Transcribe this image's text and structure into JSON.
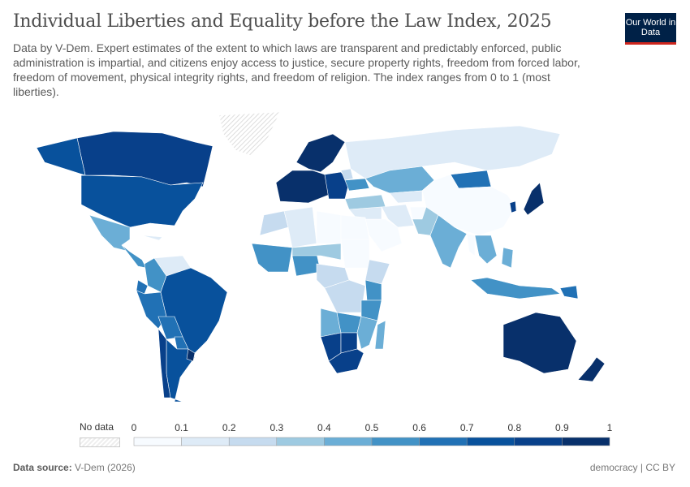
{
  "header": {
    "title": "Individual Liberties and Equality before the Law Index, 2025",
    "subtitle": "Data by V-Dem. Expert estimates of the extent to which laws are transparent and predictably enforced, public administration is impartial, and citizens enjoy access to justice, secure property rights, freedom from forced labor, freedom of movement, physical integrity rights, and freedom of religion. The index ranges from 0 to 1 (most liberties).",
    "logo": "Our World in Data"
  },
  "footer": {
    "source_label": "Data source:",
    "source": "V-Dem (2026)",
    "right": "democracy | CC BY"
  },
  "legend": {
    "no_data": "No data",
    "ticks": [
      "0",
      "0.1",
      "0.2",
      "0.3",
      "0.4",
      "0.5",
      "0.6",
      "0.7",
      "0.8",
      "0.9",
      "1"
    ],
    "colors": [
      "#f7fbff",
      "#deebf7",
      "#c6dbef",
      "#9ecae1",
      "#6baed6",
      "#4292c6",
      "#2171b5",
      "#08519c",
      "#08408a",
      "#08306b"
    ],
    "no_data_color": "#eeeeee"
  },
  "chart_data": {
    "type": "choropleth",
    "year": 2025,
    "range": [
      0,
      1
    ],
    "values": {
      "Canada": 0.88,
      "Alaska (United States)": 0.72,
      "United States": 0.72,
      "Greenland": null,
      "Mexico": 0.45,
      "Central America": 0.5,
      "Cuba": 0.15,
      "Venezuela": 0.15,
      "Colombia": 0.55,
      "Ecuador": 0.6,
      "Peru": 0.6,
      "Brazil": 0.75,
      "Bolivia": 0.6,
      "Paraguay": 0.6,
      "Argentina": 0.75,
      "Chile": 0.88,
      "Uruguay": 0.9,
      "Western Europe": 0.92,
      "Scandinavia": 0.92,
      "Eastern Europe": 0.8,
      "Belarus": 0.2,
      "Ukraine": 0.55,
      "Turkey": 0.35,
      "Russia": 0.15,
      "Kazakhstan": 0.4,
      "Central Asia": 0.1,
      "Mongolia": 0.65,
      "China": 0.08,
      "Japan": 0.9,
      "South Korea": 0.85,
      "Iran": 0.12,
      "Saudi Arabia": 0.08,
      "Middle East": 0.15,
      "Afghanistan": 0.05,
      "Pakistan": 0.35,
      "India": 0.45,
      "Myanmar": 0.08,
      "Southeast Asia": 0.4,
      "Indonesia": 0.55,
      "Philippines": 0.45,
      "Papua New Guinea": 0.6,
      "Morocco": 0.25,
      "Algeria": 0.15,
      "Libya": 0.05,
      "Egypt": 0.08,
      "West Africa": 0.55,
      "Nigeria": 0.5,
      "Sahel": 0.3,
      "Sudan": 0.05,
      "Ethiopia": 0.25,
      "Central Africa": 0.2,
      "DR Congo": 0.25,
      "Kenya": 0.55,
      "Tanzania": 0.5,
      "Angola": 0.4,
      "Zambia": 0.5,
      "Namibia": 0.8,
      "Botswana": 0.8,
      "South Africa": 0.82,
      "Mozambique": 0.4,
      "Madagascar": 0.4,
      "Australia": 0.9,
      "New Zealand": 0.9
    }
  }
}
